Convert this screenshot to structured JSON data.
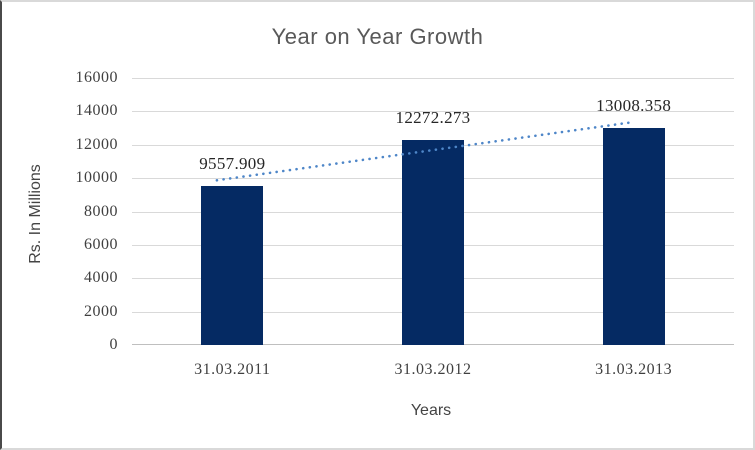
{
  "chart_data": {
    "type": "bar",
    "title": "Year on Year Growth",
    "categories": [
      "31.03.2011",
      "31.03.2012",
      "31.03.2013"
    ],
    "values": [
      9557.909,
      12272.273,
      13008.358
    ],
    "data_labels": [
      "9557.909",
      "12272.273",
      "13008.358"
    ],
    "xlabel": "Years",
    "ylabel": "Rs. In Millions",
    "ylim": [
      0,
      16000
    ],
    "ytick_step": 2000,
    "yticks": [
      0,
      2000,
      4000,
      6000,
      8000,
      10000,
      12000,
      14000,
      16000
    ],
    "grid": true,
    "legend_position": "none",
    "bar_color": "#052a63",
    "gridline_color": "#d9d9d9",
    "axis_line_color": "#bfbfbf",
    "title_color": "#595959",
    "tick_label_color": "#3f3f3f",
    "data_label_color": "#262626",
    "trendline": {
      "type": "linear",
      "style": "dotted",
      "color": "#4e86c8",
      "start_value": 9870,
      "end_value": 13350,
      "x_start_frac": 0.141,
      "x_end_frac": 0.831
    }
  }
}
